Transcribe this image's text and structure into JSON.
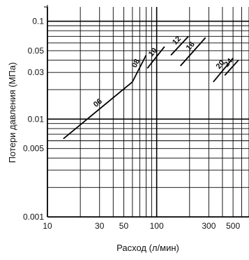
{
  "chart_data": {
    "type": "line",
    "title": "",
    "xlabel": "Расход (л/мин)",
    "ylabel": "Потери давления (МПа)",
    "x_scale": "log",
    "y_scale": "log",
    "xlim": [
      10,
      700
    ],
    "ylim": [
      0.001,
      0.14
    ],
    "grid": true,
    "x_ticks": [
      {
        "value": 10,
        "label": "10"
      },
      {
        "value": 30,
        "label": "30"
      },
      {
        "value": 50,
        "label": "50"
      },
      {
        "value": 100,
        "label": "100"
      },
      {
        "value": 300,
        "label": "300"
      },
      {
        "value": 500,
        "label": "500"
      }
    ],
    "y_ticks": [
      {
        "value": 0.001,
        "label": "0.001"
      },
      {
        "value": 0.005,
        "label": "0.005"
      },
      {
        "value": 0.01,
        "label": "0.01"
      },
      {
        "value": 0.03,
        "label": "0.03"
      },
      {
        "value": 0.05,
        "label": "0.05"
      },
      {
        "value": 0.1,
        "label": "0.1"
      }
    ],
    "series": [
      {
        "name": "06",
        "x": [
          14,
          60
        ],
        "y": [
          0.0063,
          0.024
        ]
      },
      {
        "name": "08",
        "x": [
          60,
          80
        ],
        "y": [
          0.024,
          0.045
        ]
      },
      {
        "name": "10",
        "x": [
          82,
          118
        ],
        "y": [
          0.033,
          0.055
        ]
      },
      {
        "name": "12",
        "x": [
          135,
          195
        ],
        "y": [
          0.045,
          0.07
        ]
      },
      {
        "name": "16",
        "x": [
          165,
          280
        ],
        "y": [
          0.035,
          0.068
        ]
      },
      {
        "name": "20",
        "x": [
          330,
          500
        ],
        "y": [
          0.024,
          0.042
        ]
      },
      {
        "name": "24",
        "x": [
          420,
          560
        ],
        "y": [
          0.028,
          0.04
        ]
      }
    ]
  }
}
